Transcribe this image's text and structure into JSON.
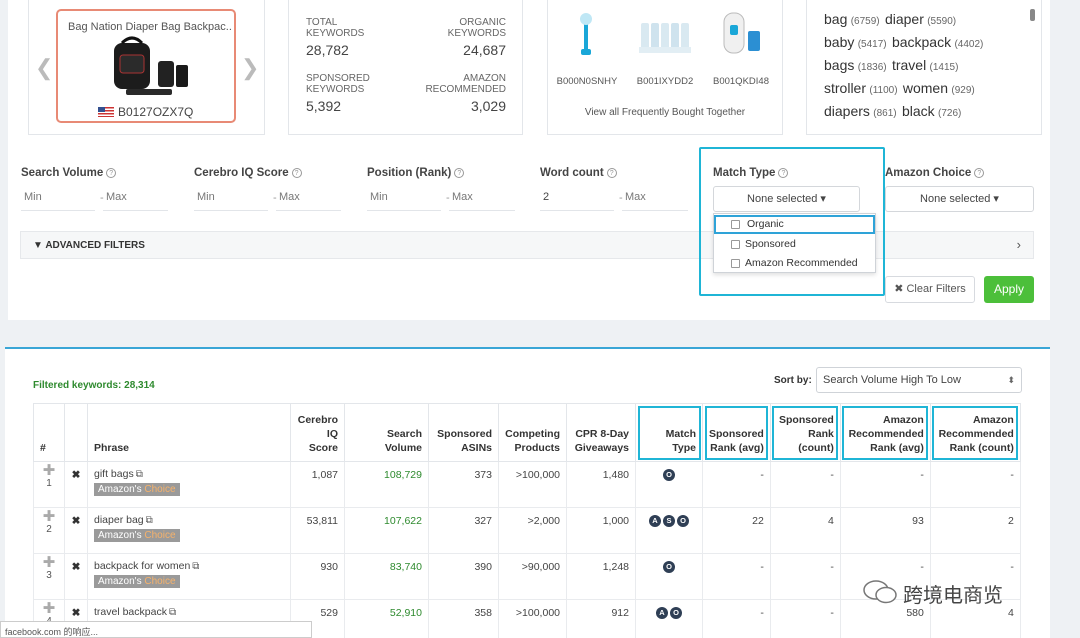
{
  "product": {
    "title": "Bag Nation Diaper Bag Backpac...",
    "asin": "B0127OZX7Q"
  },
  "stats": {
    "total_label": "TOTAL KEYWORDS",
    "total_value": "28,782",
    "organic_label": "ORGANIC KEYWORDS",
    "organic_value": "24,687",
    "sponsored_label": "SPONSORED KEYWORDS",
    "sponsored_value": "5,392",
    "amazon_label": "AMAZON RECOMMENDED",
    "amazon_value": "3,029"
  },
  "fbt": {
    "items": [
      "B000N0SNHY",
      "B001IXYDD2",
      "B001QKDI48"
    ],
    "link": "View all Frequently Bought Together"
  },
  "word_cloud": [
    {
      "w": "bag",
      "n": "(6759)"
    },
    {
      "w": "diaper",
      "n": "(5590)"
    },
    {
      "w": "baby",
      "n": "(5417)"
    },
    {
      "w": "backpack",
      "n": "(4402)"
    },
    {
      "w": "bags",
      "n": "(1836)"
    },
    {
      "w": "travel",
      "n": "(1415)"
    },
    {
      "w": "stroller",
      "n": "(1100)"
    },
    {
      "w": "women",
      "n": "(929)"
    },
    {
      "w": "diapers",
      "n": "(861)"
    },
    {
      "w": "black",
      "n": "(726)"
    }
  ],
  "filters": {
    "search_volume": "Search Volume",
    "cerebro": "Cerebro IQ Score",
    "position": "Position (Rank)",
    "word_count": "Word count",
    "match_type": "Match Type",
    "amazon_choice": "Amazon Choice",
    "min": "Min",
    "max": "Max",
    "word_min_value": "2",
    "none_selected": "None selected",
    "match_options": [
      "Organic",
      "Sponsored",
      "Amazon Recommended"
    ],
    "advanced": "ADVANCED FILTERS",
    "clear": "Clear Filters",
    "apply": "Apply"
  },
  "results": {
    "filtered": "Filtered keywords: 28,314",
    "sort_label": "Sort by:",
    "sort_value": "Search Volume High To Low",
    "headers": [
      "#",
      "",
      "Phrase",
      "Cerebro IQ Score",
      "Search Volume",
      "Sponsored ASINs",
      "Competing Products",
      "CPR 8-Day Giveaways",
      "Match Type",
      "Sponsored Rank (avg)",
      "Sponsored Rank (count)",
      "Amazon Recommended Rank (avg)",
      "Amazon Recommended Rank (count)"
    ],
    "badge_a": "Amazon's",
    "badge_b": "Choice",
    "rows": [
      {
        "n": "1",
        "phrase": "gift bags",
        "iq": "1,087",
        "sv": "108,729",
        "sa": "373",
        "cp": ">100,000",
        "cpr": "1,480",
        "mt": [
          "O"
        ],
        "sr": "-",
        "sc": "-",
        "ar": "-",
        "ac": "-"
      },
      {
        "n": "2",
        "phrase": "diaper bag",
        "iq": "53,811",
        "sv": "107,622",
        "sa": "327",
        "cp": ">2,000",
        "cpr": "1,000",
        "mt": [
          "A",
          "S",
          "O"
        ],
        "sr": "22",
        "sc": "4",
        "ar": "93",
        "ac": "2"
      },
      {
        "n": "3",
        "phrase": "backpack for women",
        "iq": "930",
        "sv": "83,740",
        "sa": "390",
        "cp": ">90,000",
        "cpr": "1,248",
        "mt": [
          "O"
        ],
        "sr": "-",
        "sc": "-",
        "ar": "-",
        "ac": "-"
      },
      {
        "n": "4",
        "phrase": "travel backpack",
        "iq": "529",
        "sv": "52,910",
        "sa": "358",
        "cp": ">100,000",
        "cpr": "912",
        "mt": [
          "A",
          "O"
        ],
        "sr": "-",
        "sc": "-",
        "ar": "580",
        "ac": "4"
      }
    ]
  },
  "footer": {
    "fb_bar": "facebook.com 的响应...",
    "watermark": "跨境电商览"
  },
  "colors": {
    "accent_blue": "#1fb5d6",
    "apply_green": "#4cbf3a",
    "volume_green": "#2e8a2e",
    "product_border": "#e88a75"
  }
}
